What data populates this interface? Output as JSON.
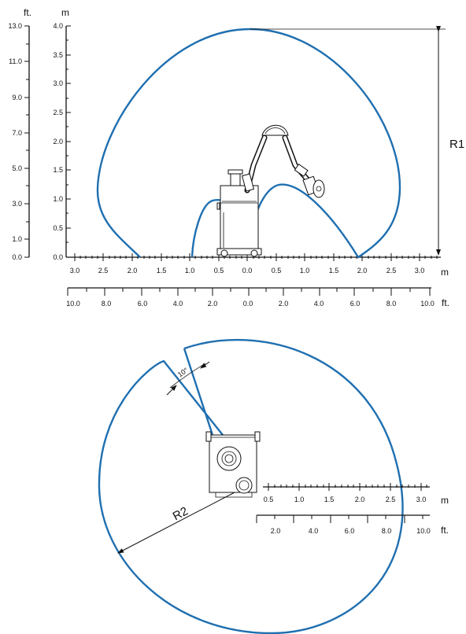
{
  "side_view": {
    "ft_unit": "ft.",
    "m_unit": "m",
    "ft_ticks": [
      "13.0",
      "11.0",
      "9.0",
      "7.0",
      "5.0",
      "3.0",
      "1.0",
      "0.0"
    ],
    "m_ticks": [
      "4.0",
      "3.5",
      "3.0",
      "2.5",
      "2.0",
      "1.5",
      "1.0",
      "0.5",
      "0.0"
    ],
    "bottom_m_ticks": [
      "3.0",
      "2.5",
      "2.0",
      "1.5",
      "1.0",
      "0.5",
      "0.0",
      "0.5",
      "1.0",
      "1.5",
      "2.0",
      "2.5",
      "3.0"
    ],
    "bottom_m_unit": "m",
    "bottom_ft_ticks": [
      "10.0",
      "8.0",
      "6.0",
      "4.0",
      "2.0",
      "0.0",
      "2.0",
      "4.0",
      "6.0",
      "8.0",
      "10.0"
    ],
    "bottom_ft_unit": "ft.",
    "dimension_label": "R1",
    "envelope_color": "#1f6fb0"
  },
  "top_view": {
    "angle_label": "10°",
    "dimension_label": "R2",
    "m_ticks": [
      "0.5",
      "1.0",
      "1.5",
      "2.0",
      "2.5",
      "3.0"
    ],
    "m_unit": "m",
    "ft_ticks": [
      "2.0",
      "4.0",
      "6.0",
      "8.0",
      "10.0"
    ],
    "ft_unit": "ft."
  }
}
